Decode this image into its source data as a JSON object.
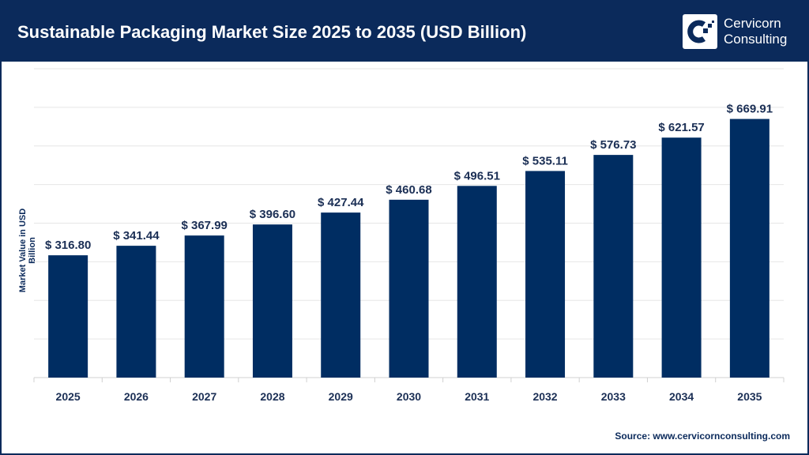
{
  "header": {
    "title": "Sustainable Packaging Market Size 2025 to 2035 (USD Billion)",
    "logo_line1": "Cervicorn",
    "logo_line2": "Consulting"
  },
  "source": "Source: www.cervicornconsulting.com",
  "colors": {
    "bar": "#002d62",
    "header": "#0b2a5b"
  },
  "chart_data": {
    "type": "bar",
    "title": "Sustainable Packaging Market Size 2025 to 2035 (USD Billion)",
    "xlabel": "",
    "ylabel": "Market Value in USD Billion",
    "ylim": [
      0,
      800
    ],
    "grid": true,
    "categories": [
      "2025",
      "2026",
      "2027",
      "2028",
      "2029",
      "2030",
      "2031",
      "2032",
      "2033",
      "2034",
      "2035"
    ],
    "values": [
      316.8,
      341.44,
      367.99,
      396.6,
      427.44,
      460.68,
      496.51,
      535.11,
      576.73,
      621.57,
      669.91
    ],
    "data_labels": [
      "$ 316.80",
      "$ 341.44",
      "$ 367.99",
      "$ 396.60",
      "$ 427.44",
      "$ 460.68",
      "$ 496.51",
      "$ 535.11",
      "$ 576.73",
      "$ 621.57",
      "$ 669.91"
    ]
  }
}
